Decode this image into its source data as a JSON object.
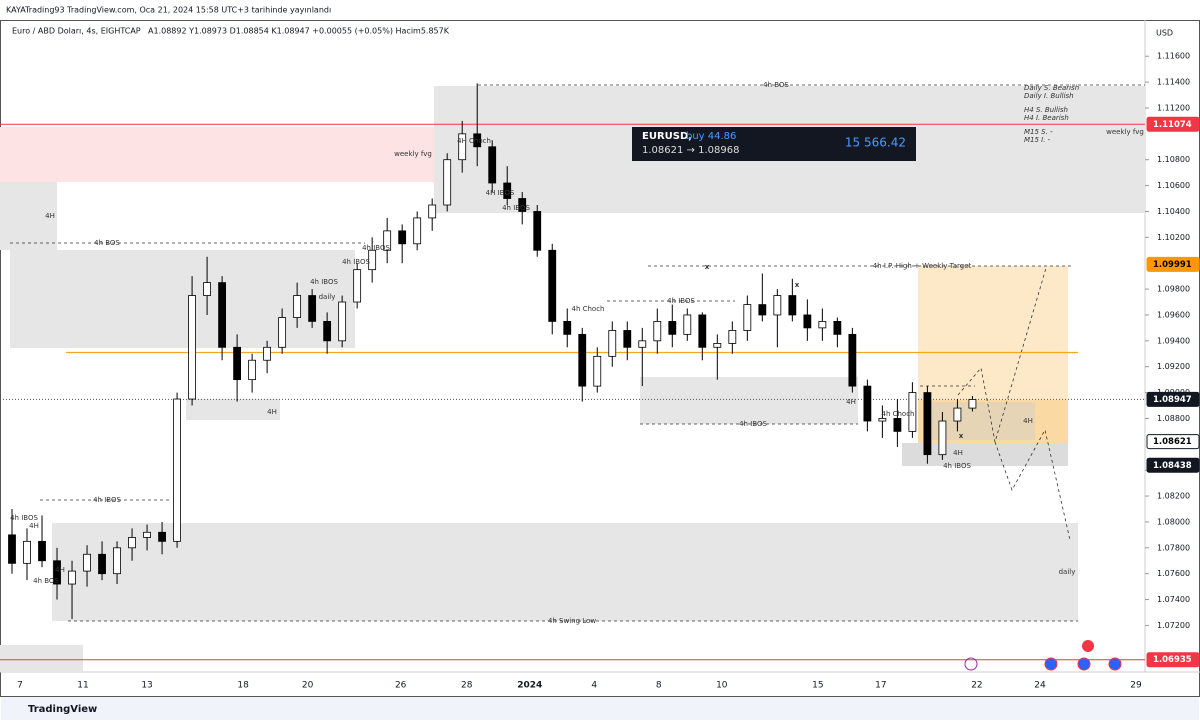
{
  "header": {
    "publisher": "KAYATrading93 TradingView.com, Oca 21, 2024 15:58 UTC+3 tarihinde yayınlandı",
    "symbol": "Euro / ABD Doları, 4s, EIGHTCAP",
    "ohlc": "A1.08892 Y1.08973 D1.08854 K1.08947 +0.00055 (+0.05%) Hacim5.857K",
    "currency": "USD",
    "footer": "TradingView"
  },
  "position": {
    "symbol": "EURUSD,",
    "side": "buy 44.86",
    "prices": "1.08621 → 1.08968",
    "pnl": "15 566.42"
  },
  "chart_data": {
    "type": "candlestick",
    "ylim": [
      1.0684,
      1.1188
    ],
    "xlim": [
      -0.8,
      75.5
    ],
    "yticks": [
      {
        "value": 1.072,
        "label": "1.07200"
      },
      {
        "value": 1.074,
        "label": "1.07400"
      },
      {
        "value": 1.076,
        "label": "1.07600"
      },
      {
        "value": 1.078,
        "label": "1.07800"
      },
      {
        "value": 1.08,
        "label": "1.08000"
      },
      {
        "value": 1.082,
        "label": "1.08200"
      },
      {
        "value": 1.084,
        "label": "1.08400"
      },
      {
        "value": 1.088,
        "label": "1.08800"
      },
      {
        "value": 1.09,
        "label": "1.09000"
      },
      {
        "value": 1.092,
        "label": "1.09200"
      },
      {
        "value": 1.094,
        "label": "1.09400"
      },
      {
        "value": 1.096,
        "label": "1.09600"
      },
      {
        "value": 1.098,
        "label": "1.09800"
      },
      {
        "value": 1.102,
        "label": "1.10200"
      },
      {
        "value": 1.104,
        "label": "1.10400"
      },
      {
        "value": 1.106,
        "label": "1.10600"
      },
      {
        "value": 1.108,
        "label": "1.10800"
      },
      {
        "value": 1.112,
        "label": "1.11200"
      },
      {
        "value": 1.114,
        "label": "1.11400"
      },
      {
        "value": 1.116,
        "label": "1.11600"
      }
    ],
    "xticks": [
      {
        "value": 0.53,
        "label": "7"
      },
      {
        "value": 4.73,
        "label": "11"
      },
      {
        "value": 9,
        "label": "13"
      },
      {
        "value": 15.4,
        "label": "18"
      },
      {
        "value": 19.7,
        "label": "20"
      },
      {
        "value": 25.9,
        "label": "26"
      },
      {
        "value": 30.3,
        "label": "28"
      },
      {
        "value": 34.5,
        "label": "2024"
      },
      {
        "value": 38.8,
        "label": "4"
      },
      {
        "value": 43.1,
        "label": "8"
      },
      {
        "value": 47.3,
        "label": "10"
      },
      {
        "value": 53.7,
        "label": "15"
      },
      {
        "value": 57.9,
        "label": "17"
      },
      {
        "value": 64.3,
        "label": "22"
      },
      {
        "value": 68.5,
        "label": "24"
      },
      {
        "value": 74.9,
        "label": "29"
      }
    ],
    "up_color": "#ffffff",
    "down_color": "#000000",
    "open": [
      1.079,
      1.0768,
      1.0785,
      1.077,
      1.0752,
      1.0762,
      1.0775,
      1.076,
      1.078,
      1.0788,
      1.0792,
      1.0785,
      1.0895,
      1.0975,
      1.0985,
      1.0935,
      1.091,
      1.0925,
      1.0935,
      1.0958,
      1.0975,
      1.0955,
      1.094,
      1.097,
      1.0995,
      1.101,
      1.1025,
      1.1015,
      1.1035,
      1.1045,
      1.108,
      1.11,
      1.109,
      1.1062,
      1.105,
      1.104,
      1.101,
      1.0955,
      1.0945,
      1.0905,
      1.0928,
      1.0948,
      1.0935,
      1.094,
      1.0955,
      1.0945,
      1.096,
      1.0935,
      1.0938,
      1.0948,
      1.0968,
      1.096,
      1.0975,
      1.096,
      1.095,
      1.0955,
      1.0945,
      1.0905,
      1.0878,
      1.088,
      1.087,
      1.09,
      1.0852,
      1.0878,
      1.0888
    ],
    "high": [
      1.081,
      1.0795,
      1.0805,
      1.078,
      1.077,
      1.0782,
      1.0785,
      1.0785,
      1.0795,
      1.0798,
      1.08,
      1.09,
      1.099,
      1.1005,
      1.099,
      1.0945,
      1.093,
      1.094,
      1.0965,
      1.0985,
      1.098,
      1.0962,
      1.0975,
      1.1,
      1.102,
      1.1035,
      1.103,
      1.104,
      1.105,
      1.1085,
      1.111,
      1.1139,
      1.1095,
      1.1075,
      1.1055,
      1.1045,
      1.1015,
      1.0965,
      1.095,
      1.0935,
      1.0955,
      1.0955,
      1.095,
      1.0965,
      1.0968,
      1.0965,
      1.0962,
      1.0945,
      1.0955,
      1.0975,
      1.0992,
      1.098,
      1.0988,
      1.0972,
      1.0965,
      1.0958,
      1.095,
      1.091,
      1.089,
      1.0895,
      1.0908,
      1.0905,
      1.0885,
      1.0895,
      1.08973
    ],
    "low": [
      1.076,
      1.0755,
      1.0765,
      1.074,
      1.0725,
      1.075,
      1.0755,
      1.0752,
      1.077,
      1.0778,
      1.0775,
      1.078,
      1.089,
      1.096,
      1.0925,
      1.0893,
      1.09,
      1.0915,
      1.093,
      1.095,
      1.095,
      1.093,
      1.0935,
      1.0965,
      1.0985,
      1.1,
      1.1,
      1.101,
      1.1025,
      1.104,
      1.107,
      1.1075,
      1.1055,
      1.1045,
      1.103,
      1.1005,
      1.0945,
      1.0935,
      1.0893,
      1.09,
      1.092,
      1.0925,
      1.0905,
      1.093,
      1.0935,
      1.094,
      1.0925,
      1.091,
      1.093,
      1.094,
      1.0955,
      1.0935,
      1.0955,
      1.094,
      1.094,
      1.0935,
      1.09,
      1.087,
      1.0865,
      1.0858,
      1.0865,
      1.0845,
      1.0848,
      1.087,
      1.08854
    ],
    "close": [
      1.0768,
      1.0785,
      1.077,
      1.0752,
      1.0762,
      1.0775,
      1.076,
      1.078,
      1.0788,
      1.0792,
      1.0785,
      1.0895,
      1.0975,
      1.0985,
      1.0935,
      1.091,
      1.0925,
      1.0935,
      1.0958,
      1.0975,
      1.0955,
      1.094,
      1.097,
      1.0995,
      1.101,
      1.1025,
      1.1015,
      1.1035,
      1.1045,
      1.108,
      1.11,
      1.109,
      1.1062,
      1.105,
      1.104,
      1.101,
      1.0955,
      1.0945,
      1.0905,
      1.0928,
      1.0948,
      1.0935,
      1.094,
      1.0955,
      1.0945,
      1.096,
      1.0935,
      1.0938,
      1.0948,
      1.0968,
      1.096,
      1.0975,
      1.096,
      1.095,
      1.0955,
      1.0945,
      1.0905,
      1.0878,
      1.088,
      1.087,
      1.09,
      1.0852,
      1.0878,
      1.0888,
      1.08947
    ],
    "price_labels": [
      {
        "value": 1.11074,
        "color": "#f23645",
        "text_color": "#ffffff",
        "line": "solid"
      },
      {
        "value": 1.09991,
        "color": "#ff9800",
        "text_color": "#000000"
      },
      {
        "value": 1.08947,
        "color": "#131722",
        "text_color": "#ffffff",
        "line": "dotted"
      },
      {
        "value": 1.08621,
        "color": "#ffffff",
        "text_color": "#000000"
      },
      {
        "value": 1.08438,
        "color": "#131722",
        "text_color": "#ffffff"
      },
      {
        "value": 1.06935,
        "color": "#f23645",
        "text_color": "#ffffff",
        "line": "solid"
      }
    ],
    "levels": [
      {
        "value": 1.0931,
        "color": "#f5a623"
      }
    ],
    "annotations": [
      "4h BOS",
      "weekly fvg",
      "4H Choch",
      "4H IBOS",
      "4h IBOS",
      "4H",
      "4h BOS",
      "4h IBOS",
      "4h IBOS",
      "4h IBOS",
      "daily",
      "4h I.P. High + Weekly Target",
      "4h IBOS",
      "4h Choch",
      "4H",
      "4h IBOS",
      "4H",
      "4h Choch",
      "4H",
      "4H",
      "4h IBOS",
      "4h IBOS",
      "4h IBOS",
      "4H",
      "4H",
      "4h BOS",
      "daily",
      "4h Swing Low",
      "weekly fvg",
      "x",
      "x",
      "x"
    ],
    "notes": [
      "Daily S. Bearish",
      "Daily I. Bullish",
      "H4 S. Bullish",
      "H4 I. Bearish",
      "M15 S. -",
      "M15 I. -"
    ]
  }
}
